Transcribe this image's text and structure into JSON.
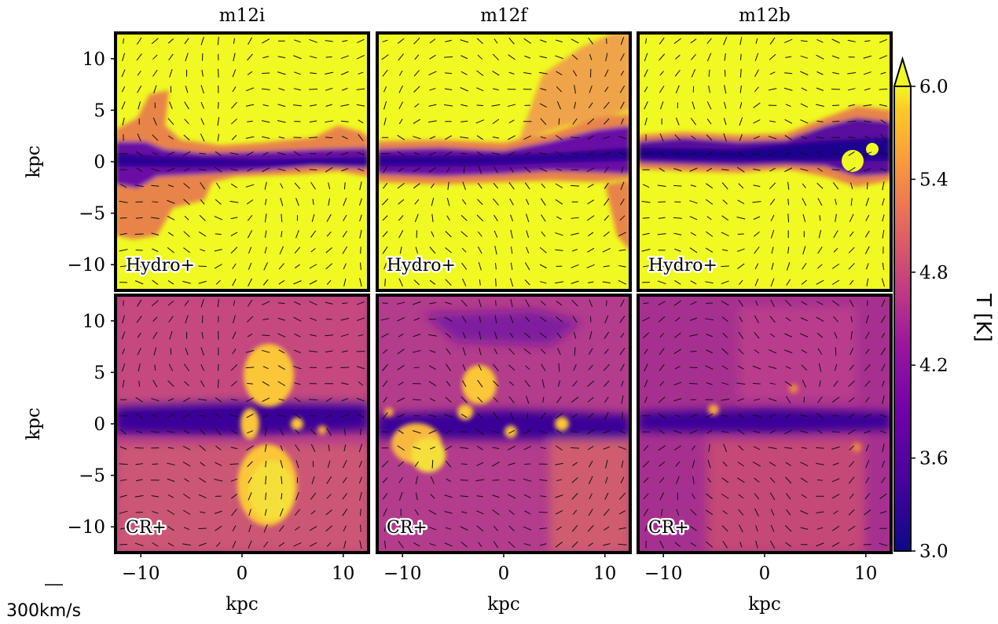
{
  "chart_data": {
    "type": "heatmap",
    "columns": [
      "m12i",
      "m12f",
      "m12b"
    ],
    "rows": [
      "Hydro+",
      "CR+"
    ],
    "xlabel": "kpc",
    "ylabel": "kpc",
    "xlim": [
      -12.5,
      12.5
    ],
    "ylim": [
      -12.5,
      12.5
    ],
    "x_ticks": [
      -10,
      0,
      10
    ],
    "y_ticks": [
      -10,
      -5,
      0,
      5,
      10
    ],
    "colorbar": {
      "label": "T [K]",
      "range": [
        3.0,
        6.0
      ],
      "ticks": [
        "3.0",
        "3.6",
        "4.2",
        "4.8",
        "5.4",
        "6.0"
      ],
      "colormap": "plasma",
      "extend": "max"
    },
    "vector_scale_label": "300km/s",
    "colors": {
      "hot": "#f0f921",
      "warm": "#f89540",
      "mid": "#cc4778",
      "cool": "#7e03a8",
      "cold": "#0d0887",
      "frame": "#000000"
    }
  }
}
